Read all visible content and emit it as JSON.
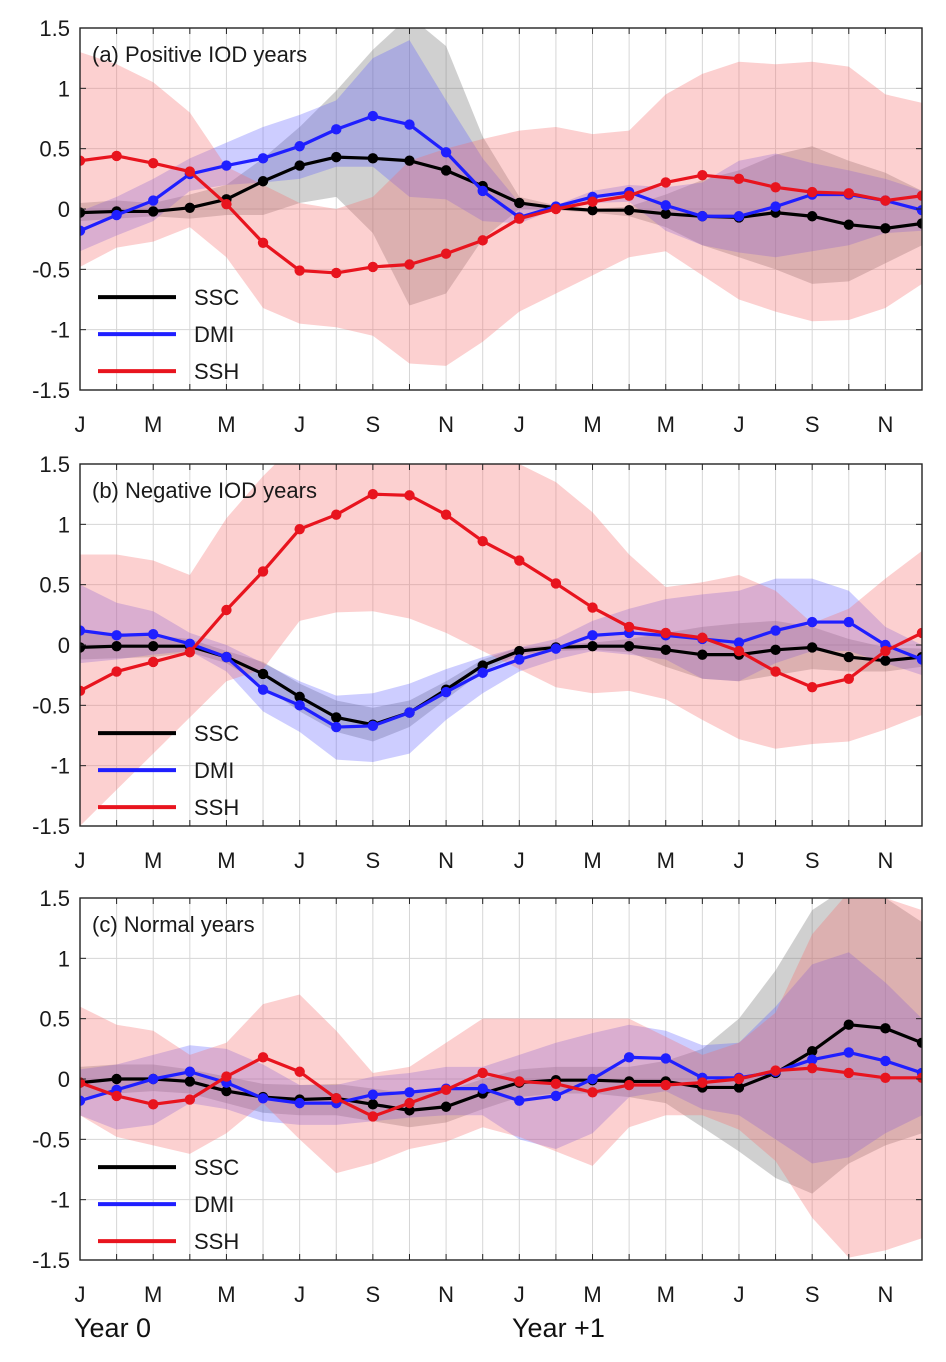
{
  "chart_data": [
    {
      "type": "line",
      "title": "(a) Positive IOD years",
      "x_tick_labels": [
        "J",
        "M",
        "M",
        "J",
        "S",
        "N",
        "J",
        "M",
        "M",
        "J",
        "S",
        "N"
      ],
      "y_ticks": [
        1.5,
        1,
        0.5,
        0,
        -0.5,
        -1,
        -1.5
      ],
      "y_tick_labels": [
        "1.5",
        "1",
        "0.5",
        "0",
        "-0.5",
        "-1",
        "-1.5"
      ],
      "ylim": [
        -1.5,
        1.5
      ],
      "xlim": [
        0,
        23
      ],
      "grid": true,
      "legend_position": "bottom-left",
      "series": [
        {
          "name": "SSC",
          "color": "#000000",
          "values": [
            -0.03,
            -0.02,
            -0.02,
            0.01,
            0.08,
            0.23,
            0.36,
            0.43,
            0.42,
            0.4,
            0.32,
            0.19,
            0.05,
            0.01,
            -0.01,
            -0.01,
            -0.04,
            -0.06,
            -0.07,
            -0.03,
            -0.06,
            -0.13,
            -0.16,
            -0.12
          ],
          "upper": [
            0.05,
            0.07,
            0.05,
            0.12,
            0.2,
            0.42,
            0.68,
            0.98,
            1.32,
            1.6,
            1.35,
            0.6,
            0.1,
            0.03,
            0.0,
            0.02,
            0.12,
            0.24,
            0.32,
            0.45,
            0.52,
            0.4,
            0.3,
            0.15
          ],
          "lower": [
            -0.1,
            -0.08,
            -0.06,
            -0.08,
            -0.05,
            -0.05,
            0.05,
            0.1,
            -0.2,
            -0.8,
            -0.7,
            -0.25,
            0.0,
            -0.01,
            -0.03,
            -0.06,
            -0.15,
            -0.3,
            -0.4,
            -0.5,
            -0.62,
            -0.6,
            -0.45,
            -0.3
          ]
        },
        {
          "name": "DMI",
          "color": "#1f1fff",
          "values": [
            -0.18,
            -0.05,
            0.07,
            0.29,
            0.36,
            0.42,
            0.52,
            0.66,
            0.77,
            0.7,
            0.47,
            0.15,
            -0.07,
            0.02,
            0.1,
            0.14,
            0.03,
            -0.06,
            -0.06,
            0.02,
            0.12,
            0.12,
            0.07,
            -0.01
          ],
          "upper": [
            -0.02,
            0.1,
            0.25,
            0.42,
            0.55,
            0.68,
            0.78,
            0.9,
            1.25,
            1.4,
            0.9,
            0.42,
            0.05,
            0.03,
            0.15,
            0.2,
            0.18,
            0.22,
            0.4,
            0.46,
            0.38,
            0.32,
            0.25,
            0.15
          ],
          "lower": [
            -0.35,
            -0.22,
            -0.1,
            0.15,
            0.2,
            0.22,
            0.25,
            0.35,
            0.35,
            0.1,
            0.08,
            -0.1,
            -0.12,
            0.0,
            0.05,
            0.06,
            -0.18,
            -0.3,
            -0.36,
            -0.4,
            -0.35,
            -0.3,
            -0.2,
            -0.18
          ]
        },
        {
          "name": "SSH",
          "color": "#e8141e",
          "values": [
            0.4,
            0.44,
            0.38,
            0.31,
            0.04,
            -0.28,
            -0.51,
            -0.53,
            -0.48,
            -0.46,
            -0.37,
            -0.26,
            -0.08,
            0.0,
            0.06,
            0.11,
            0.22,
            0.28,
            0.25,
            0.18,
            0.14,
            0.13,
            0.07,
            0.11
          ],
          "upper": [
            1.3,
            1.2,
            1.05,
            0.8,
            0.35,
            0.2,
            0.05,
            0.0,
            0.1,
            0.4,
            0.5,
            0.58,
            0.65,
            0.68,
            0.62,
            0.65,
            0.95,
            1.12,
            1.22,
            1.2,
            1.22,
            1.18,
            0.95,
            0.88
          ],
          "lower": [
            -0.48,
            -0.32,
            -0.27,
            -0.15,
            -0.4,
            -0.82,
            -0.95,
            -0.98,
            -1.05,
            -1.28,
            -1.3,
            -1.1,
            -0.85,
            -0.7,
            -0.55,
            -0.4,
            -0.35,
            -0.55,
            -0.75,
            -0.85,
            -0.93,
            -0.92,
            -0.82,
            -0.62
          ]
        }
      ]
    },
    {
      "type": "line",
      "title": "(b) Negative IOD years",
      "x_tick_labels": [
        "J",
        "M",
        "M",
        "J",
        "S",
        "N",
        "J",
        "M",
        "M",
        "J",
        "S",
        "N"
      ],
      "y_ticks": [
        1.5,
        1,
        0.5,
        0,
        -0.5,
        -1,
        -1.5
      ],
      "y_tick_labels": [
        "1.5",
        "1",
        "0.5",
        "0",
        "-0.5",
        "-1",
        "-1.5"
      ],
      "ylim": [
        -1.5,
        1.5
      ],
      "xlim": [
        0,
        23
      ],
      "grid": true,
      "legend_position": "bottom-left",
      "series": [
        {
          "name": "SSC",
          "color": "#000000",
          "values": [
            -0.02,
            -0.01,
            -0.01,
            -0.01,
            -0.1,
            -0.24,
            -0.43,
            -0.6,
            -0.66,
            -0.56,
            -0.37,
            -0.17,
            -0.05,
            -0.02,
            -0.01,
            -0.01,
            -0.04,
            -0.08,
            -0.08,
            -0.04,
            -0.02,
            -0.1,
            -0.13,
            -0.1
          ],
          "upper": [
            0.1,
            0.1,
            0.08,
            0.05,
            -0.05,
            -0.14,
            -0.32,
            -0.46,
            -0.52,
            -0.46,
            -0.3,
            -0.12,
            -0.02,
            0.0,
            0.02,
            0.05,
            0.1,
            0.15,
            0.18,
            0.2,
            0.15,
            0.05,
            -0.02,
            -0.03
          ],
          "lower": [
            -0.12,
            -0.11,
            -0.1,
            -0.06,
            -0.15,
            -0.34,
            -0.55,
            -0.72,
            -0.8,
            -0.68,
            -0.45,
            -0.22,
            -0.08,
            -0.05,
            -0.04,
            -0.06,
            -0.18,
            -0.28,
            -0.3,
            -0.25,
            -0.2,
            -0.22,
            -0.22,
            -0.18
          ]
        },
        {
          "name": "DMI",
          "color": "#1f1fff",
          "values": [
            0.12,
            0.08,
            0.09,
            0.01,
            -0.1,
            -0.37,
            -0.5,
            -0.68,
            -0.67,
            -0.56,
            -0.39,
            -0.23,
            -0.12,
            -0.03,
            0.08,
            0.1,
            0.08,
            0.05,
            0.02,
            0.12,
            0.19,
            0.19,
            0.0,
            -0.12
          ],
          "upper": [
            0.5,
            0.35,
            0.28,
            0.1,
            0.0,
            -0.15,
            -0.3,
            -0.42,
            -0.4,
            -0.32,
            -0.2,
            -0.1,
            -0.02,
            0.05,
            0.2,
            0.3,
            0.38,
            0.42,
            0.45,
            0.55,
            0.55,
            0.45,
            0.15,
            0.0
          ],
          "lower": [
            -0.15,
            -0.12,
            -0.08,
            -0.05,
            -0.22,
            -0.55,
            -0.72,
            -0.95,
            -0.97,
            -0.9,
            -0.62,
            -0.4,
            -0.22,
            -0.12,
            -0.05,
            -0.08,
            -0.12,
            -0.28,
            -0.3,
            -0.15,
            -0.05,
            -0.05,
            -0.15,
            -0.25
          ]
        },
        {
          "name": "SSH",
          "color": "#e8141e",
          "values": [
            -0.38,
            -0.22,
            -0.14,
            -0.06,
            0.29,
            0.61,
            0.96,
            1.08,
            1.25,
            1.24,
            1.08,
            0.86,
            0.7,
            0.51,
            0.31,
            0.15,
            0.1,
            0.06,
            -0.05,
            -0.22,
            -0.35,
            -0.28,
            -0.05,
            0.1
          ],
          "upper": [
            0.75,
            0.75,
            0.7,
            0.58,
            1.05,
            1.4,
            1.7,
            1.75,
            1.8,
            1.78,
            1.68,
            1.6,
            1.5,
            1.35,
            1.1,
            0.75,
            0.48,
            0.52,
            0.58,
            0.45,
            0.18,
            0.3,
            0.55,
            0.78
          ],
          "lower": [
            -1.5,
            -1.2,
            -0.9,
            -0.6,
            -0.3,
            -0.2,
            0.2,
            0.27,
            0.28,
            0.22,
            0.1,
            -0.05,
            -0.2,
            -0.35,
            -0.4,
            -0.38,
            -0.45,
            -0.62,
            -0.78,
            -0.86,
            -0.82,
            -0.8,
            -0.7,
            -0.58
          ]
        }
      ]
    },
    {
      "type": "line",
      "title": "(c) Normal years",
      "x_tick_labels": [
        "J",
        "M",
        "M",
        "J",
        "S",
        "N",
        "J",
        "M",
        "M",
        "J",
        "S",
        "N"
      ],
      "y_ticks": [
        1.5,
        1,
        0.5,
        0,
        -0.5,
        -1,
        -1.5
      ],
      "y_tick_labels": [
        "1.5",
        "1",
        "0.5",
        "0",
        "-0.5",
        "-1",
        "-1.5"
      ],
      "ylim": [
        -1.5,
        1.5
      ],
      "xlim": [
        0,
        23
      ],
      "grid": true,
      "legend_position": "bottom-left",
      "series": [
        {
          "name": "SSC",
          "color": "#000000",
          "values": [
            -0.03,
            0.0,
            0.0,
            -0.02,
            -0.1,
            -0.15,
            -0.17,
            -0.16,
            -0.21,
            -0.26,
            -0.23,
            -0.12,
            -0.03,
            -0.01,
            -0.01,
            -0.02,
            -0.02,
            -0.07,
            -0.07,
            0.05,
            0.23,
            0.45,
            0.42,
            0.3
          ],
          "upper": [
            0.1,
            0.12,
            0.12,
            0.08,
            0.02,
            -0.04,
            -0.05,
            -0.04,
            -0.08,
            -0.12,
            -0.1,
            0.0,
            0.08,
            0.1,
            0.1,
            0.1,
            0.15,
            0.25,
            0.5,
            0.9,
            1.4,
            1.6,
            1.5,
            1.3
          ],
          "lower": [
            -0.15,
            -0.12,
            -0.1,
            -0.12,
            -0.2,
            -0.28,
            -0.3,
            -0.3,
            -0.35,
            -0.4,
            -0.36,
            -0.25,
            -0.15,
            -0.12,
            -0.12,
            -0.15,
            -0.2,
            -0.4,
            -0.6,
            -0.82,
            -0.95,
            -0.7,
            -0.55,
            -0.45
          ]
        },
        {
          "name": "DMI",
          "color": "#1f1fff",
          "values": [
            -0.18,
            -0.09,
            0.0,
            0.06,
            -0.03,
            -0.16,
            -0.2,
            -0.2,
            -0.13,
            -0.11,
            -0.08,
            -0.08,
            -0.18,
            -0.14,
            0.0,
            0.18,
            0.17,
            0.01,
            0.01,
            0.06,
            0.16,
            0.22,
            0.15,
            0.05
          ],
          "upper": [
            0.08,
            0.12,
            0.2,
            0.28,
            0.25,
            0.12,
            -0.05,
            -0.05,
            0.02,
            0.05,
            0.1,
            0.1,
            0.2,
            0.3,
            0.38,
            0.45,
            0.4,
            0.28,
            0.3,
            0.6,
            0.95,
            1.05,
            0.8,
            0.5
          ],
          "lower": [
            -0.3,
            -0.42,
            -0.38,
            -0.2,
            -0.25,
            -0.35,
            -0.38,
            -0.38,
            -0.35,
            -0.32,
            -0.3,
            -0.3,
            -0.5,
            -0.58,
            -0.45,
            -0.15,
            -0.1,
            -0.25,
            -0.3,
            -0.5,
            -0.7,
            -0.65,
            -0.45,
            -0.3
          ]
        },
        {
          "name": "SSH",
          "color": "#e8141e",
          "values": [
            -0.03,
            -0.14,
            -0.21,
            -0.17,
            0.02,
            0.18,
            0.06,
            -0.16,
            -0.31,
            -0.2,
            -0.09,
            0.05,
            -0.02,
            -0.04,
            -0.11,
            -0.05,
            -0.05,
            -0.03,
            0.0,
            0.07,
            0.09,
            0.05,
            0.01,
            0.01
          ],
          "upper": [
            0.6,
            0.45,
            0.4,
            0.2,
            0.3,
            0.62,
            0.7,
            0.4,
            0.05,
            0.1,
            0.3,
            0.5,
            0.5,
            0.5,
            0.5,
            0.5,
            0.35,
            0.2,
            0.3,
            0.55,
            1.2,
            1.55,
            1.5,
            1.4
          ],
          "lower": [
            -0.3,
            -0.48,
            -0.55,
            -0.62,
            -0.45,
            -0.2,
            -0.5,
            -0.78,
            -0.7,
            -0.58,
            -0.52,
            -0.4,
            -0.48,
            -0.6,
            -0.72,
            -0.4,
            -0.3,
            -0.3,
            -0.42,
            -0.68,
            -1.15,
            -1.48,
            -1.42,
            -1.32
          ]
        }
      ]
    }
  ],
  "bottom_labels": {
    "year0": "Year 0",
    "year1": "Year +1"
  }
}
